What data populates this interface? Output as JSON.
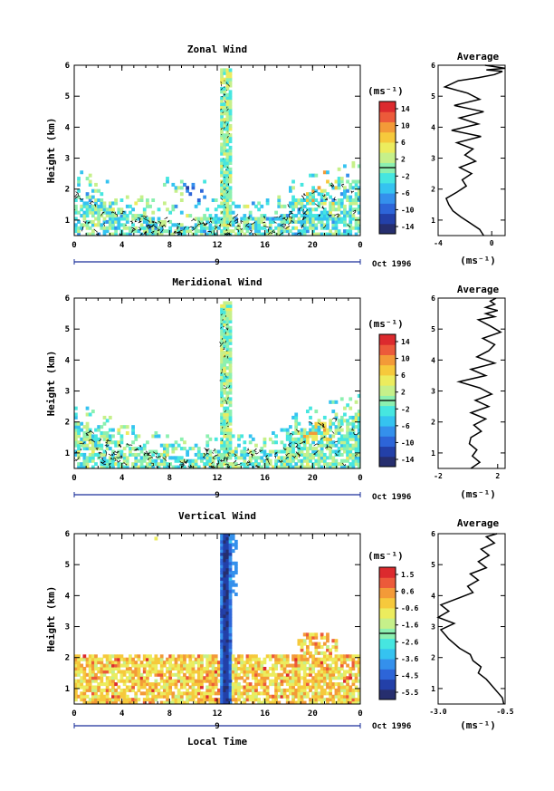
{
  "chart_data": [
    {
      "type": "heatmap",
      "title": "Zonal Wind",
      "ylabel": "Height (km)",
      "xlabel": "",
      "xlim": [
        0,
        24
      ],
      "ylim": [
        0.5,
        6
      ],
      "xticks": [
        "0",
        "4",
        "8",
        "12",
        "16",
        "20",
        "0"
      ],
      "yticks": [
        "1",
        "2",
        "3",
        "4",
        "5",
        "6"
      ],
      "date_day": "9",
      "date_label": "Oct 1996",
      "colorbar": {
        "unit": "(ms⁻¹)",
        "ticks": [
          "14",
          "10",
          "6",
          "2",
          "-2",
          "-6",
          "-10",
          "-14"
        ],
        "range": [
          -16,
          16
        ]
      },
      "profile": {
        "title": "Average",
        "xlabel": "(ms⁻¹)",
        "xlim": [
          -4,
          1
        ],
        "xticks": [
          "-4",
          "0"
        ],
        "x": [
          -0.6,
          -0.9,
          -1.6,
          -2.3,
          -2.9,
          -3.2,
          -3.4,
          -2.6,
          -1.9,
          -2.2,
          -1.5,
          -2.4,
          -1.2,
          -2.0,
          -1.4,
          -2.6,
          -0.8,
          -3.0,
          -1.0,
          -2.4,
          -0.6,
          -2.8,
          -0.9,
          -1.8,
          -3.5,
          -2.5,
          -1.0,
          0.2,
          0.8,
          -0.4,
          1.0,
          -0.5
        ],
        "heights": [
          0.5,
          0.7,
          0.9,
          1.1,
          1.3,
          1.5,
          1.7,
          1.9,
          2.1,
          2.3,
          2.5,
          2.7,
          2.9,
          3.1,
          3.3,
          3.5,
          3.7,
          3.9,
          4.1,
          4.3,
          4.5,
          4.7,
          4.9,
          5.1,
          5.3,
          5.5,
          5.6,
          5.7,
          5.8,
          5.85,
          5.9,
          6.0
        ]
      }
    },
    {
      "type": "heatmap",
      "title": "Meridional Wind",
      "ylabel": "Height (km)",
      "xlabel": "",
      "xlim": [
        0,
        24
      ],
      "ylim": [
        0.5,
        6
      ],
      "xticks": [
        "0",
        "4",
        "8",
        "12",
        "16",
        "20",
        "0"
      ],
      "yticks": [
        "1",
        "2",
        "3",
        "4",
        "5",
        "6"
      ],
      "date_day": "9",
      "date_label": "Oct 1996",
      "colorbar": {
        "unit": "(ms⁻¹)",
        "ticks": [
          "14",
          "10",
          "6",
          "2",
          "-2",
          "-6",
          "-10",
          "-14"
        ],
        "range": [
          -16,
          16
        ]
      },
      "profile": {
        "title": "Average",
        "xlabel": "(ms⁻¹)",
        "xlim": [
          -2,
          2.5
        ],
        "xticks": [
          "-2",
          "2"
        ],
        "x": [
          0.2,
          0.8,
          0.3,
          0.6,
          0.1,
          0.2,
          0.9,
          0.4,
          1.2,
          0.2,
          1.4,
          0.5,
          1.6,
          0.8,
          -0.6,
          1.2,
          0.2,
          1.8,
          0.6,
          1.4,
          1.8,
          1.0,
          2.2,
          1.5,
          0.7,
          1.8,
          1.2,
          2.0,
          1.2,
          1.8,
          1.5,
          1.9
        ],
        "heights": [
          0.5,
          0.7,
          0.9,
          1.1,
          1.3,
          1.5,
          1.7,
          1.9,
          2.1,
          2.3,
          2.5,
          2.7,
          2.9,
          3.1,
          3.3,
          3.5,
          3.7,
          3.9,
          4.1,
          4.3,
          4.5,
          4.7,
          4.9,
          5.1,
          5.3,
          5.4,
          5.5,
          5.6,
          5.7,
          5.8,
          5.9,
          6.0
        ]
      }
    },
    {
      "type": "heatmap",
      "title": "Vertical Wind",
      "ylabel": "Height (km)",
      "xlabel": "Local Time",
      "xlim": [
        0,
        24
      ],
      "ylim": [
        0.5,
        6
      ],
      "xticks": [
        "0",
        "4",
        "8",
        "12",
        "16",
        "20",
        "0"
      ],
      "yticks": [
        "1",
        "2",
        "3",
        "4",
        "5",
        "6"
      ],
      "date_day": "9",
      "date_label": "Oct 1996",
      "colorbar": {
        "unit": "(ms⁻¹)",
        "ticks": [
          "1.5",
          "0.6",
          "-0.6",
          "-1.6",
          "-2.6",
          "-3.6",
          "-4.5",
          "-5.5"
        ],
        "range": [
          -6.0,
          2.0
        ]
      },
      "profile": {
        "title": "Average",
        "xlabel": "(ms⁻¹)",
        "xlim": [
          -3.0,
          -0.5
        ],
        "xticks": [
          "-3.0",
          "-0.5"
        ],
        "x": [
          -0.55,
          -0.6,
          -0.8,
          -1.0,
          -1.2,
          -1.5,
          -1.4,
          -1.7,
          -1.8,
          -2.2,
          -2.6,
          -2.9,
          -2.4,
          -3.0,
          -2.6,
          -2.9,
          -2.3,
          -1.7,
          -1.9,
          -1.5,
          -1.8,
          -1.2,
          -1.5,
          -1.1,
          -1.4,
          -0.9,
          -1.2,
          -0.8
        ],
        "heights": [
          0.5,
          0.7,
          0.9,
          1.1,
          1.3,
          1.5,
          1.7,
          1.9,
          2.1,
          2.3,
          2.6,
          2.9,
          3.1,
          3.3,
          3.5,
          3.7,
          3.9,
          4.1,
          4.3,
          4.5,
          4.7,
          4.9,
          5.1,
          5.3,
          5.5,
          5.7,
          5.9,
          6.0
        ]
      }
    }
  ],
  "colors": {
    "scale": [
      "#262e6e",
      "#2340a8",
      "#2d65d8",
      "#3490ec",
      "#35c3f0",
      "#46e6e0",
      "#8cf0b0",
      "#c6f08a",
      "#ecec5e",
      "#f6c93c",
      "#f39a38",
      "#ec5a3a",
      "#dc2a2e"
    ],
    "axis": "#000000",
    "date_bar": "#1a2f9a"
  }
}
